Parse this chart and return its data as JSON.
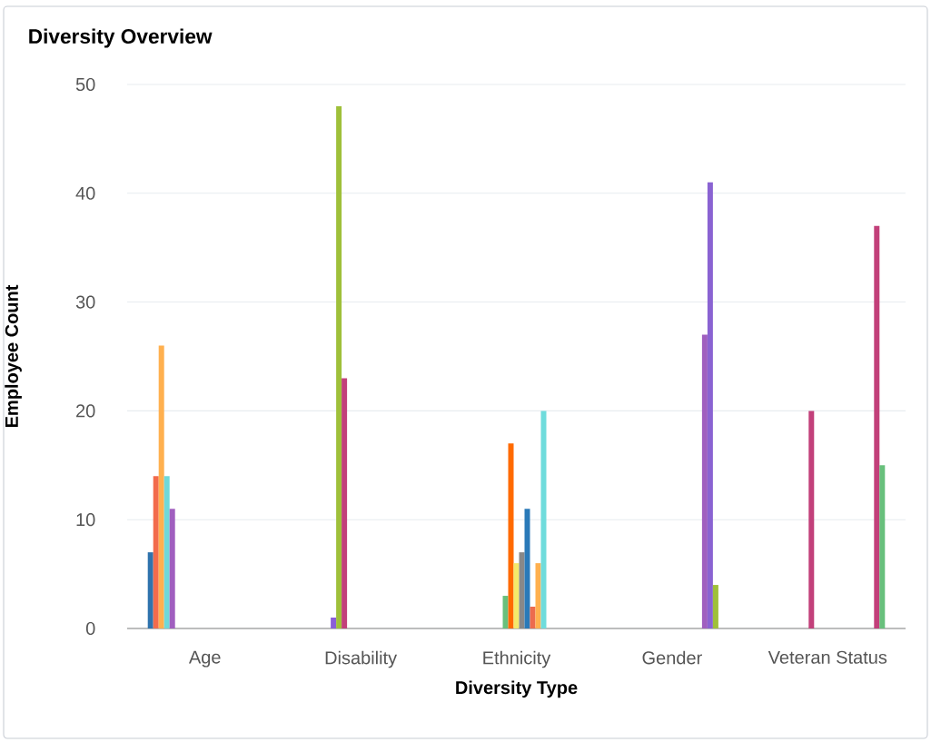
{
  "chart_data": {
    "type": "bar",
    "title": "Diversity Overview",
    "xlabel": "Diversity Type",
    "ylabel": "Employee Count",
    "categories": [
      "Age",
      "Disability",
      "Ethnicity",
      "Gender",
      "Veteran Status"
    ],
    "ylim": [
      0,
      50
    ],
    "yticks": [
      0,
      10,
      20,
      30,
      40,
      50
    ],
    "grid": "y",
    "series": [
      {
        "color": "#2f73ad",
        "values": [
          7,
          null,
          null,
          null,
          null
        ]
      },
      {
        "color": "#f26b4c",
        "values": [
          14,
          null,
          null,
          null,
          null
        ]
      },
      {
        "color": "#ffb04f",
        "values": [
          26,
          null,
          null,
          null,
          null
        ]
      },
      {
        "color": "#6fd9d9",
        "values": [
          14,
          null,
          null,
          null,
          null
        ]
      },
      {
        "color": "#a05fbf",
        "values": [
          11,
          null,
          null,
          null,
          null
        ]
      },
      {
        "color": "#8a5fd6",
        "values": [
          null,
          1,
          null,
          null,
          null
        ]
      },
      {
        "color": "#9fc03a",
        "values": [
          null,
          48,
          null,
          null,
          null
        ]
      },
      {
        "color": "#c2407a",
        "values": [
          null,
          23,
          null,
          null,
          20
        ]
      },
      {
        "color": "#68c07c",
        "values": [
          null,
          null,
          3,
          null,
          null
        ]
      },
      {
        "color": "#ff6a00",
        "values": [
          null,
          null,
          17,
          null,
          null
        ]
      },
      {
        "color": "#f5e96a",
        "values": [
          null,
          null,
          6,
          null,
          null
        ]
      },
      {
        "color": "#888888",
        "values": [
          null,
          null,
          7,
          null,
          null
        ]
      },
      {
        "color": "#2a7ab8",
        "values": [
          null,
          null,
          11,
          null,
          null
        ]
      },
      {
        "color": "#ec6b4e",
        "values": [
          null,
          null,
          2,
          null,
          null
        ]
      },
      {
        "color": "#ffb04f",
        "values": [
          null,
          null,
          6,
          null,
          null
        ]
      },
      {
        "color": "#6fdcdc",
        "values": [
          null,
          null,
          20,
          null,
          null
        ]
      },
      {
        "color": "#a05fbf",
        "values": [
          null,
          null,
          null,
          27,
          null
        ]
      },
      {
        "color": "#8a63d2",
        "values": [
          null,
          null,
          null,
          41,
          null
        ]
      },
      {
        "color": "#9fc03a",
        "values": [
          null,
          null,
          null,
          4,
          null
        ]
      },
      {
        "color": "#c2407a",
        "values": [
          null,
          null,
          null,
          null,
          37
        ]
      },
      {
        "color": "#68c07c",
        "values": [
          null,
          null,
          null,
          null,
          15
        ]
      }
    ]
  }
}
